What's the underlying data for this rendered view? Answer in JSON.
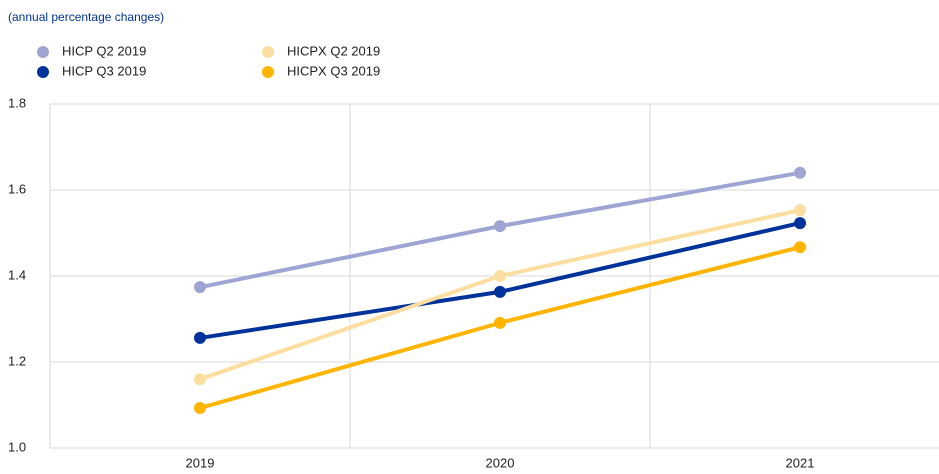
{
  "chart_data": {
    "type": "line",
    "subtitle": "(annual percentage changes)",
    "categories": [
      "2019",
      "2020",
      "2021"
    ],
    "series": [
      {
        "name": "HICP Q2 2019",
        "color": "#9fa5d3",
        "values": [
          1.374,
          1.516,
          1.64
        ]
      },
      {
        "name": "HICP Q3 2019",
        "color": "#003299",
        "values": [
          1.256,
          1.363,
          1.523
        ]
      },
      {
        "name": "HICPX Q2 2019",
        "color": "#fcdea0",
        "values": [
          1.16,
          1.4,
          1.553
        ]
      },
      {
        "name": "HICPX Q3 2019",
        "color": "#ffb400",
        "values": [
          1.093,
          1.291,
          1.467
        ]
      }
    ],
    "ylim": [
      1,
      1.8
    ],
    "yticks": [
      {
        "value": 1,
        "label": "1.0"
      },
      1.2,
      1.4,
      1.6,
      1.8
    ],
    "grid": true
  }
}
